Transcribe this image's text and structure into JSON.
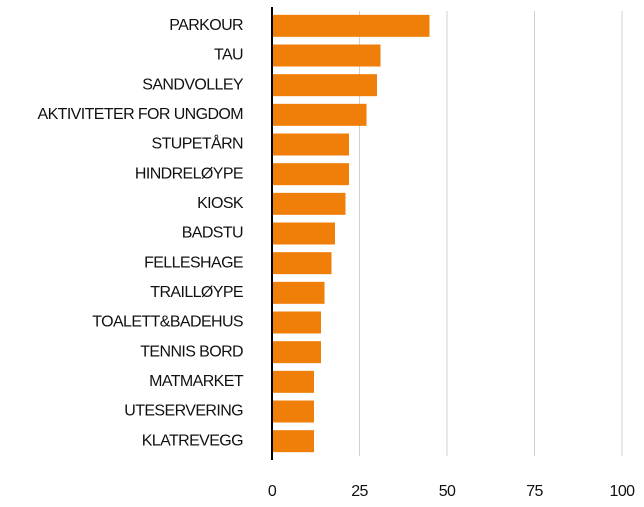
{
  "chart_data": {
    "type": "bar",
    "orientation": "horizontal",
    "categories": [
      "PARKOUR",
      "TAU",
      "SANDVOLLEY",
      "AKTIVITETER FOR UNGDOM",
      "STUPETÅRN",
      "HINDRELØYPE",
      "KIOSK",
      "BADSTU",
      "FELLESHAGE",
      "TRAILLØYPE",
      "TOALETT&BADEHUS",
      "TENNIS BORD",
      "MATMARKET",
      "UTESERVERING",
      "KLATREVEGG"
    ],
    "values": [
      45,
      31,
      30,
      27,
      22,
      22,
      21,
      18,
      17,
      15,
      14,
      14,
      12,
      12,
      12
    ],
    "color": "#f07f09",
    "xlim": [
      0,
      100
    ],
    "xticks": [
      0,
      25,
      50,
      75,
      100
    ],
    "grid": true
  }
}
